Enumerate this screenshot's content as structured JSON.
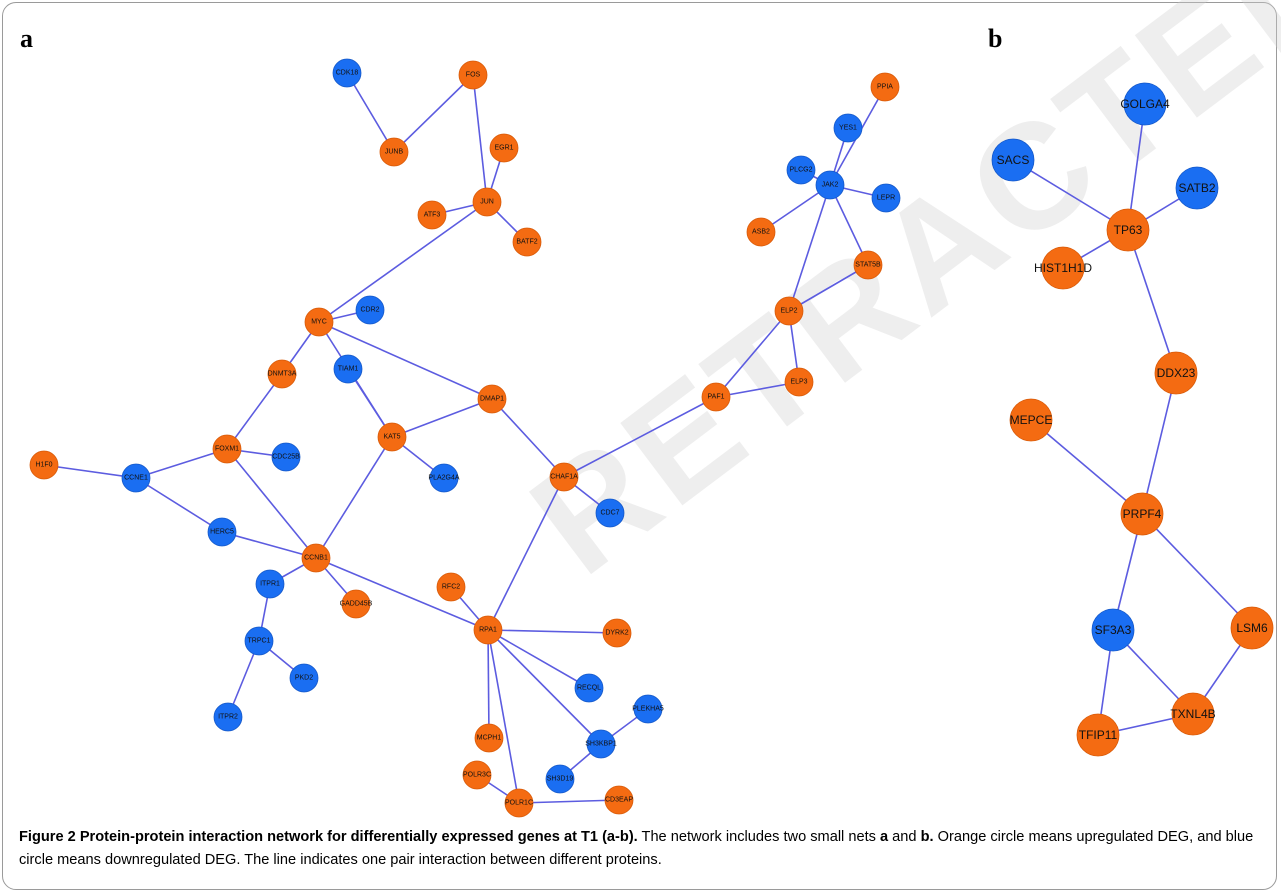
{
  "panels": {
    "a": "a",
    "b": "b"
  },
  "colors": {
    "up": "#f46b12",
    "down": "#1a6ef2",
    "edge": "#5c5ce0"
  },
  "caption": {
    "title": "Figure 2 Protein-protein interaction network for differentially expressed genes at T1 (a-b).",
    "text_1": " The network includes two small nets ",
    "a": "a",
    "text_2": " and ",
    "b": "b.",
    "text_3": " Orange circle means upregulated DEG, and blue circle means downregulated DEG. The line indicates one pair interaction between different proteins."
  },
  "watermark": "RETRACTED ARTICLE",
  "network_a": {
    "nodes": [
      {
        "id": "CDK18",
        "type": "down"
      },
      {
        "id": "FOS",
        "type": "up"
      },
      {
        "id": "JUNB",
        "type": "up"
      },
      {
        "id": "EGR1",
        "type": "up"
      },
      {
        "id": "JUN",
        "type": "up"
      },
      {
        "id": "ATF3",
        "type": "up"
      },
      {
        "id": "BATF2",
        "type": "up"
      },
      {
        "id": "PPIA",
        "type": "up"
      },
      {
        "id": "YES1",
        "type": "down"
      },
      {
        "id": "PLCG2",
        "type": "down"
      },
      {
        "id": "JAK2",
        "type": "down"
      },
      {
        "id": "LEPR",
        "type": "down"
      },
      {
        "id": "ASB2",
        "type": "up"
      },
      {
        "id": "STAT5B",
        "type": "up"
      },
      {
        "id": "ELP2",
        "type": "up"
      },
      {
        "id": "ELP3",
        "type": "up"
      },
      {
        "id": "PAF1",
        "type": "up"
      },
      {
        "id": "MYC",
        "type": "up"
      },
      {
        "id": "CDR2",
        "type": "down"
      },
      {
        "id": "DNMT3A",
        "type": "up"
      },
      {
        "id": "TIAM1",
        "type": "down"
      },
      {
        "id": "DMAP1",
        "type": "up"
      },
      {
        "id": "KAT5",
        "type": "up"
      },
      {
        "id": "FOXM1",
        "type": "up"
      },
      {
        "id": "CDC25B",
        "type": "down"
      },
      {
        "id": "H1F0",
        "type": "up"
      },
      {
        "id": "CCNE1",
        "type": "down"
      },
      {
        "id": "PLA2G4A",
        "type": "down"
      },
      {
        "id": "CHAF1A",
        "type": "up"
      },
      {
        "id": "CDC7",
        "type": "down"
      },
      {
        "id": "HERC5",
        "type": "down"
      },
      {
        "id": "CCNB1",
        "type": "up"
      },
      {
        "id": "ITPR1",
        "type": "down"
      },
      {
        "id": "GADD45B",
        "type": "up"
      },
      {
        "id": "RFC2",
        "type": "up"
      },
      {
        "id": "RPA1",
        "type": "up"
      },
      {
        "id": "DYRK2",
        "type": "up"
      },
      {
        "id": "TRPC1",
        "type": "down"
      },
      {
        "id": "PKD2",
        "type": "down"
      },
      {
        "id": "ITPR2",
        "type": "down"
      },
      {
        "id": "RECQL",
        "type": "down"
      },
      {
        "id": "PLEKHA5",
        "type": "down"
      },
      {
        "id": "MCPH1",
        "type": "up"
      },
      {
        "id": "SH3KBP1",
        "type": "down"
      },
      {
        "id": "SH3D19",
        "type": "down"
      },
      {
        "id": "POLR3C",
        "type": "up"
      },
      {
        "id": "POLR1C",
        "type": "up"
      },
      {
        "id": "CD3EAP",
        "type": "up"
      }
    ],
    "edges": [
      [
        "CDK18",
        "JUNB"
      ],
      [
        "JUNB",
        "FOS"
      ],
      [
        "FOS",
        "JUN"
      ],
      [
        "EGR1",
        "JUN"
      ],
      [
        "ATF3",
        "JUN"
      ],
      [
        "JUN",
        "BATF2"
      ],
      [
        "JUN",
        "MYC"
      ],
      [
        "PPIA",
        "JAK2"
      ],
      [
        "YES1",
        "JAK2"
      ],
      [
        "PLCG2",
        "JAK2"
      ],
      [
        "JAK2",
        "LEPR"
      ],
      [
        "ASB2",
        "JAK2"
      ],
      [
        "JAK2",
        "STAT5B"
      ],
      [
        "JAK2",
        "ELP2"
      ],
      [
        "STAT5B",
        "ELP2"
      ],
      [
        "ELP2",
        "ELP3"
      ],
      [
        "ELP2",
        "PAF1"
      ],
      [
        "PAF1",
        "ELP3"
      ],
      [
        "PAF1",
        "CHAF1A"
      ],
      [
        "MYC",
        "CDR2"
      ],
      [
        "MYC",
        "DNMT3A"
      ],
      [
        "MYC",
        "DMAP1"
      ],
      [
        "MYC",
        "KAT5"
      ],
      [
        "DNMT3A",
        "FOXM1"
      ],
      [
        "TIAM1",
        "KAT5"
      ],
      [
        "KAT5",
        "DMAP1"
      ],
      [
        "KAT5",
        "PLA2G4A"
      ],
      [
        "KAT5",
        "CCNB1"
      ],
      [
        "DMAP1",
        "CHAF1A"
      ],
      [
        "CHAF1A",
        "CDC7"
      ],
      [
        "CHAF1A",
        "RPA1"
      ],
      [
        "FOXM1",
        "CDC25B"
      ],
      [
        "FOXM1",
        "CCNE1"
      ],
      [
        "FOXM1",
        "CCNB1"
      ],
      [
        "H1F0",
        "CCNE1"
      ],
      [
        "CCNE1",
        "HERC5"
      ],
      [
        "HERC5",
        "CCNB1"
      ],
      [
        "CCNB1",
        "GADD45B"
      ],
      [
        "CCNB1",
        "ITPR1"
      ],
      [
        "CCNB1",
        "RPA1"
      ],
      [
        "ITPR1",
        "TRPC1"
      ],
      [
        "TRPC1",
        "PKD2"
      ],
      [
        "TRPC1",
        "ITPR2"
      ],
      [
        "RFC2",
        "RPA1"
      ],
      [
        "RPA1",
        "DYRK2"
      ],
      [
        "RPA1",
        "RECQL"
      ],
      [
        "RPA1",
        "SH3KBP1"
      ],
      [
        "RPA1",
        "MCPH1"
      ],
      [
        "RPA1",
        "POLR1C"
      ],
      [
        "SH3KBP1",
        "PLEKHA5"
      ],
      [
        "SH3KBP1",
        "SH3D19"
      ],
      [
        "POLR3C",
        "POLR1C"
      ],
      [
        "POLR1C",
        "CD3EAP"
      ]
    ]
  },
  "network_b": {
    "nodes": [
      {
        "id": "GOLGA4",
        "type": "down"
      },
      {
        "id": "SACS",
        "type": "down"
      },
      {
        "id": "SATB2",
        "type": "down"
      },
      {
        "id": "TP63",
        "type": "up"
      },
      {
        "id": "HIST1H1D",
        "type": "up"
      },
      {
        "id": "DDX23",
        "type": "up"
      },
      {
        "id": "MEPCE",
        "type": "up"
      },
      {
        "id": "PRPF4",
        "type": "up"
      },
      {
        "id": "SF3A3",
        "type": "down"
      },
      {
        "id": "LSM6",
        "type": "up"
      },
      {
        "id": "TFIP11",
        "type": "up"
      },
      {
        "id": "TXNL4B",
        "type": "up"
      }
    ],
    "edges": [
      [
        "GOLGA4",
        "TP63"
      ],
      [
        "SACS",
        "TP63"
      ],
      [
        "SATB2",
        "TP63"
      ],
      [
        "TP63",
        "HIST1H1D"
      ],
      [
        "TP63",
        "DDX23"
      ],
      [
        "DDX23",
        "PRPF4"
      ],
      [
        "MEPCE",
        "PRPF4"
      ],
      [
        "PRPF4",
        "SF3A3"
      ],
      [
        "PRPF4",
        "LSM6"
      ],
      [
        "SF3A3",
        "TFIP11"
      ],
      [
        "SF3A3",
        "TXNL4B"
      ],
      [
        "LSM6",
        "TXNL4B"
      ],
      [
        "TFIP11",
        "TXNL4B"
      ]
    ]
  }
}
